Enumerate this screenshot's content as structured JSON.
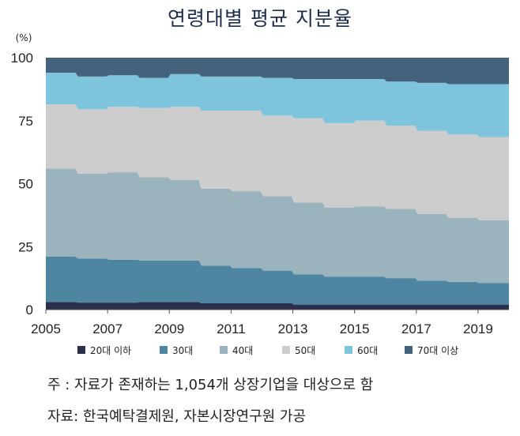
{
  "chart_data": {
    "type": "area",
    "title": "연령대별 평균 지분율",
    "ylabel": "(%)",
    "xlabel": "",
    "ylim": [
      0,
      100
    ],
    "yticks": [
      0,
      25,
      50,
      75,
      100
    ],
    "xlim": [
      2005,
      2020
    ],
    "xticks": [
      2005,
      2007,
      2009,
      2011,
      2013,
      2015,
      2017,
      2019
    ],
    "x": [
      2005,
      2006,
      2007,
      2008,
      2009,
      2010,
      2011,
      2012,
      2013,
      2014,
      2015,
      2016,
      2017,
      2018,
      2019
    ],
    "stacked": true,
    "grid": false,
    "legend_position": "bottom",
    "series": [
      {
        "name": "20대 이하",
        "color": "#2b2f4b",
        "values": [
          3.0,
          2.8,
          2.8,
          3.0,
          3.0,
          2.5,
          2.5,
          2.5,
          2.0,
          2.0,
          2.0,
          2.0,
          2.0,
          2.0,
          2.0
        ]
      },
      {
        "name": "30대",
        "color": "#4e86a2",
        "values": [
          18.0,
          17.5,
          17.0,
          16.5,
          16.5,
          15.0,
          14.0,
          13.0,
          12.0,
          11.0,
          11.0,
          10.5,
          9.5,
          9.0,
          8.5
        ]
      },
      {
        "name": "40대",
        "color": "#9bb3bc",
        "values": [
          35.0,
          33.7,
          34.7,
          33.0,
          32.0,
          30.5,
          30.5,
          29.5,
          28.5,
          27.5,
          28.0,
          27.5,
          26.5,
          25.5,
          25.0
        ]
      },
      {
        "name": "50대",
        "color": "#cdcdcd",
        "values": [
          25.5,
          25.5,
          26.0,
          27.5,
          29.0,
          31.0,
          32.0,
          32.0,
          33.5,
          33.5,
          34.0,
          33.0,
          33.0,
          33.0,
          33.0
        ]
      },
      {
        "name": "60대",
        "color": "#7fc4dd",
        "values": [
          12.5,
          13.0,
          12.5,
          12.0,
          13.0,
          13.5,
          13.5,
          15.0,
          15.5,
          17.5,
          16.5,
          17.5,
          19.0,
          20.0,
          21.0
        ]
      },
      {
        "name": "70대 이상",
        "color": "#44627c",
        "values": [
          6.0,
          7.5,
          7.0,
          8.0,
          6.5,
          7.5,
          7.5,
          8.0,
          8.5,
          8.5,
          8.5,
          9.5,
          10.0,
          10.5,
          10.5
        ]
      }
    ]
  },
  "notes": {
    "note1": "주   : 자료가 존재하는 1,054개 상장기업을 대상으로 함",
    "note2": "자료: 한국예탁결제원, 자본시장연구원 가공"
  }
}
